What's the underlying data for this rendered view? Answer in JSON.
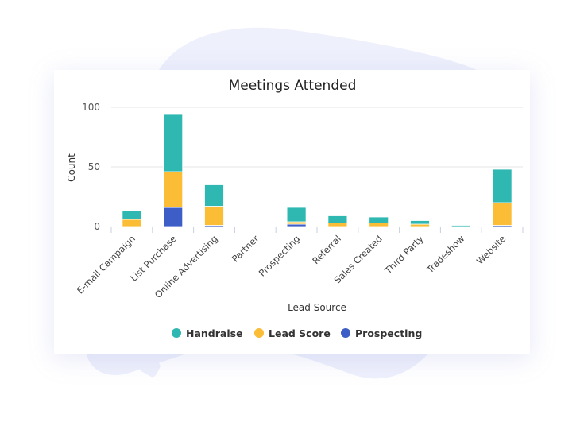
{
  "chart_data": {
    "type": "bar",
    "stacked": true,
    "title": "Meetings Attended",
    "xlabel": "Lead Source",
    "ylabel": "Count",
    "ylim": [
      0,
      100
    ],
    "yticks": [
      0,
      50,
      100
    ],
    "grid": true,
    "legend_position": "bottom",
    "categories": [
      "E-mail Campaign",
      "List Purchase",
      "Online Advertising",
      "Partner",
      "Prospecting",
      "Referral",
      "Sales Created",
      "Third Party",
      "Tradeshow",
      "Website"
    ],
    "series": [
      {
        "name": "Prospecting",
        "color": "#3c5ec6",
        "values": [
          0,
          16,
          1,
          0,
          2,
          0,
          0,
          0,
          0,
          1
        ]
      },
      {
        "name": "Lead Score",
        "color": "#fbbd36",
        "values": [
          6,
          30,
          16,
          0,
          2,
          3,
          3,
          2,
          0,
          19
        ]
      },
      {
        "name": "Handraise",
        "color": "#2eb8b1",
        "values": [
          7,
          48,
          18,
          0,
          12,
          6,
          5,
          3,
          1,
          28
        ]
      }
    ],
    "legend_order": [
      "Handraise",
      "Lead Score",
      "Prospecting"
    ]
  }
}
